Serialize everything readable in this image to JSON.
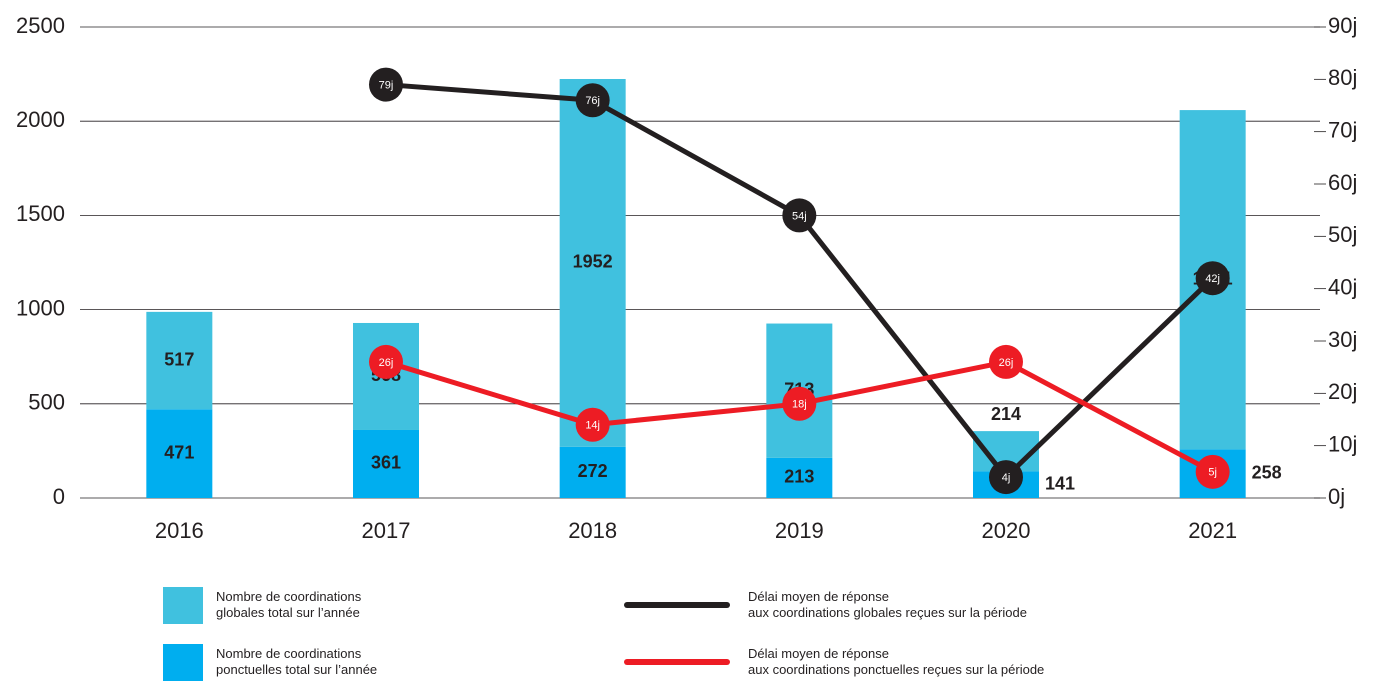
{
  "chart_data": {
    "type": "bar",
    "categories": [
      "2016",
      "2017",
      "2018",
      "2019",
      "2020",
      "2021"
    ],
    "series": [
      {
        "name": "Nombre de coordinations\nponctuelles total sur l’année",
        "color": "#00aeef",
        "values": [
          471,
          361,
          272,
          213,
          141,
          258
        ]
      },
      {
        "name": "Nombre de coordinations\nglobales total sur l’année",
        "color": "#40c1df",
        "values": [
          517,
          568,
          1952,
          713,
          214,
          1801
        ]
      },
      {
        "name": "Délai moyen de réponse\naux coordinations globales reçues sur la période",
        "color": "#231f20",
        "type": "line",
        "axis": "y2",
        "values": [
          null,
          79,
          76,
          54,
          4,
          42
        ],
        "value_labels": [
          null,
          "79j",
          "76j",
          "54j",
          "4j",
          "42j"
        ]
      },
      {
        "name": "Délai moyen de réponse\naux coordinations ponctuelles reçues sur la période",
        "color": "#ed1c24",
        "type": "line",
        "axis": "y2",
        "values": [
          null,
          26,
          14,
          18,
          26,
          5
        ],
        "value_labels": [
          null,
          "26j",
          "14j",
          "18j",
          "26j",
          "5j"
        ]
      }
    ],
    "ylim": [
      0,
      2500
    ],
    "yticks": [
      0,
      500,
      1000,
      1500,
      2000,
      2500
    ],
    "y2lim": [
      0,
      90
    ],
    "y2ticks": [
      {
        "value": 0,
        "label": "0j"
      },
      {
        "value": 10,
        "label": "10j"
      },
      {
        "value": 20,
        "label": "20j"
      },
      {
        "value": 30,
        "label": "30j"
      },
      {
        "value": 40,
        "label": "40j"
      },
      {
        "value": 50,
        "label": "50j"
      },
      {
        "value": 60,
        "label": "60j"
      },
      {
        "value": 70,
        "label": "70j"
      },
      {
        "value": 80,
        "label": "80j"
      },
      {
        "value": 90,
        "label": "90j"
      }
    ],
    "grid": true
  }
}
